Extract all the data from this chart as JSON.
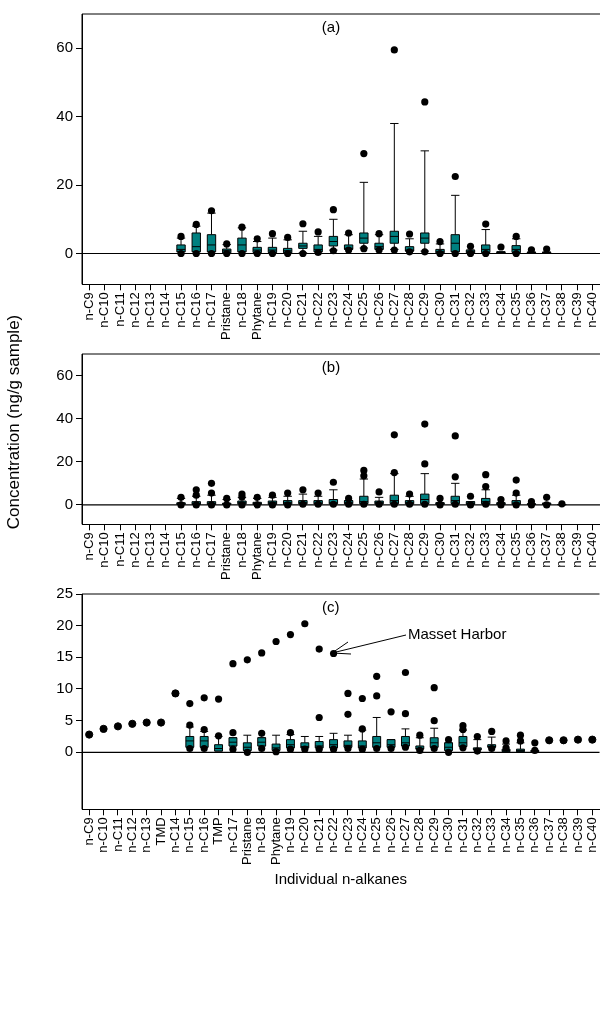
{
  "chart_data": [
    {
      "type": "box",
      "title": "(a)",
      "categories": [
        "n-C9",
        "n-C10",
        "n-C11",
        "n-C12",
        "n-C13",
        "n-C14",
        "n-C15",
        "n-C16",
        "n-C17",
        "Pristane",
        "n-C18",
        "Phytane",
        "n-C19",
        "n-C20",
        "n-C21",
        "n-C22",
        "n-C23",
        "n-C24",
        "n-C25",
        "n-C26",
        "n-C27",
        "n-C28",
        "n-C29",
        "n-C30",
        "n-C31",
        "n-C32",
        "n-C33",
        "n-C34",
        "n-C35",
        "n-C36",
        "n-C37",
        "n-C38",
        "n-C39",
        "n-C40"
      ],
      "series": [
        {
          "type": "box",
          "color": "#008080",
          "boxes": [
            null,
            null,
            null,
            null,
            null,
            null,
            {
              "low": 0.5,
              "q1": 0.5,
              "median": 1.2,
              "q3": 2.5,
              "high": 4.5,
              "outliers": [
                5,
                0
              ]
            },
            {
              "low": 0.5,
              "q1": 0.5,
              "median": 2,
              "q3": 6,
              "high": 8,
              "outliers": [
                8.5,
                0
              ]
            },
            {
              "low": 0.5,
              "q1": 0.5,
              "median": 2.5,
              "q3": 5.5,
              "high": 11.8,
              "outliers": [
                12.5,
                0
              ]
            },
            {
              "low": 0.2,
              "q1": 0.2,
              "median": 0.8,
              "q3": 1.3,
              "high": 2.6,
              "outliers": [
                2.8,
                0
              ]
            },
            {
              "low": 0.5,
              "q1": 0.5,
              "median": 2.5,
              "q3": 4.5,
              "high": 7.5,
              "outliers": [
                7.7,
                0
              ]
            },
            {
              "low": 0.3,
              "q1": 0.3,
              "median": 1,
              "q3": 1.8,
              "high": 3.5,
              "outliers": [
                4.3,
                0
              ]
            },
            {
              "low": 0.3,
              "q1": 0.3,
              "median": 1,
              "q3": 1.8,
              "high": 4.5,
              "outliers": [
                5.8,
                0
              ]
            },
            {
              "low": 0.2,
              "q1": 0.2,
              "median": 0.8,
              "q3": 1.5,
              "high": 4,
              "outliers": [
                4.7,
                0
              ]
            },
            {
              "low": 0.2,
              "q1": 1.5,
              "median": 2.2,
              "q3": 3,
              "high": 6.5,
              "outliers": [
                8.7,
                0
              ]
            },
            {
              "low": 0.5,
              "q1": 0.5,
              "median": 1.2,
              "q3": 2.5,
              "high": 5,
              "outliers": [
                6.3,
                0.3
              ]
            },
            {
              "low": 1,
              "q1": 2.2,
              "median": 3.5,
              "q3": 5,
              "high": 10,
              "outliers": [
                12.8,
                0.8
              ]
            },
            {
              "low": 1.2,
              "q1": 1.2,
              "median": 1.5,
              "q3": 2.5,
              "high": 5.5,
              "outliers": [
                6,
                1
              ]
            },
            {
              "low": 1.6,
              "q1": 3,
              "median": 4.5,
              "q3": 6,
              "high": 20.8,
              "outliers": [
                29.2,
                1.4
              ]
            },
            {
              "low": 1.2,
              "q1": 1.2,
              "median": 2,
              "q3": 3,
              "high": 5.5,
              "outliers": [
                5.8,
                1
              ]
            },
            {
              "low": 1.2,
              "q1": 3,
              "median": 5,
              "q3": 6.5,
              "high": 38,
              "outliers": [
                59.5,
                1
              ]
            },
            {
              "low": 0.7,
              "q1": 0.7,
              "median": 1,
              "q3": 2,
              "high": 4.3,
              "outliers": [
                5.7,
                0.5
              ]
            },
            {
              "low": 0.7,
              "q1": 3,
              "median": 4.5,
              "q3": 6,
              "high": 30,
              "outliers": [
                44.3,
                0.5
              ]
            },
            {
              "low": 0.2,
              "q1": 0.2,
              "median": 0.5,
              "q3": 1.2,
              "high": 2.8,
              "outliers": [
                3.5,
                0
              ]
            },
            {
              "low": 0.5,
              "q1": 0.5,
              "median": 3,
              "q3": 5.5,
              "high": 17,
              "outliers": [
                22.5,
                0
              ]
            },
            {
              "low": 0.2,
              "q1": 0.2,
              "median": 0.5,
              "q3": 1,
              "high": 1,
              "outliers": [
                2.1,
                0
              ]
            },
            {
              "low": 0.3,
              "q1": 0.3,
              "median": 1.2,
              "q3": 2.5,
              "high": 7,
              "outliers": [
                8.6,
                0
              ]
            },
            {
              "low": 0.2,
              "q1": 0.2,
              "median": 0.3,
              "q3": 0.5,
              "high": 0.5,
              "outliers": [
                1.9
              ]
            },
            {
              "low": 0.3,
              "q1": 0.3,
              "median": 1.2,
              "q3": 2.3,
              "high": 4.3,
              "outliers": [
                5,
                0
              ]
            },
            {
              "low": 0.2,
              "q1": 0.2,
              "median": 0.3,
              "q3": 0.4,
              "high": 0.4,
              "outliers": [
                1.1
              ]
            },
            {
              "low": 0.2,
              "q1": 0.2,
              "median": 0.3,
              "q3": 0.4,
              "high": 0.4,
              "outliers": [
                1.3
              ]
            },
            null,
            null,
            null
          ]
        }
      ],
      "ylim": [
        -9,
        70
      ],
      "yticks": [
        0,
        20,
        40,
        60
      ],
      "ref_lines": [
        {
          "axis": "y",
          "value": 0,
          "color": "#000000"
        }
      ],
      "grid": false,
      "legend": false
    },
    {
      "type": "box",
      "title": "(b)",
      "ylabel": "Concentration (ng/g sample)",
      "categories": [
        "n-C9",
        "n-C10",
        "n-C11",
        "n-C12",
        "n-C13",
        "n-C14",
        "n-C15",
        "n-C16",
        "n-C17",
        "Pristane",
        "n-C18",
        "Phytane",
        "n-C19",
        "n-C20",
        "n-C21",
        "n-C22",
        "n-C23",
        "n-C24",
        "n-C25",
        "n-C26",
        "n-C27",
        "n-C28",
        "n-C29",
        "n-C30",
        "n-C31",
        "n-C32",
        "n-C33",
        "n-C34",
        "n-C35",
        "n-C36",
        "n-C37",
        "n-C38",
        "n-C39",
        "n-C40"
      ],
      "series": [
        {
          "type": "box",
          "color": "#008080",
          "boxes": [
            null,
            null,
            null,
            null,
            null,
            null,
            {
              "low": 0.2,
              "q1": 0.2,
              "median": 0.5,
              "q3": 1,
              "high": 3,
              "outliers": [
                3.5,
                0
              ]
            },
            {
              "low": 0.2,
              "q1": 0.2,
              "median": 0.7,
              "q3": 1.5,
              "high": 4,
              "outliers": [
                7,
                4.5,
                0
              ]
            },
            {
              "low": 0.2,
              "q1": 0.2,
              "median": 0.7,
              "q3": 1.5,
              "high": 4.5,
              "outliers": [
                10,
                5.5,
                0
              ]
            },
            {
              "low": 0.2,
              "q1": 0.2,
              "median": 0.4,
              "q3": 0.8,
              "high": 2.5,
              "outliers": [
                3,
                0
              ]
            },
            {
              "low": 0.5,
              "q1": 0.5,
              "median": 1.2,
              "q3": 1.8,
              "high": 3.5,
              "outliers": [
                5,
                3.7,
                0
              ]
            },
            {
              "low": 0.2,
              "q1": 0.2,
              "median": 0.7,
              "q3": 1.2,
              "high": 3,
              "outliers": [
                3.5,
                0
              ]
            },
            {
              "low": 0.3,
              "q1": 0.3,
              "median": 1,
              "q3": 1.8,
              "high": 3.5,
              "outliers": [
                4.5,
                0
              ]
            },
            {
              "low": 0.3,
              "q1": 0.3,
              "median": 1,
              "q3": 2,
              "high": 4,
              "outliers": [
                5.5,
                0
              ]
            },
            {
              "low": 0.5,
              "q1": 0.5,
              "median": 1,
              "q3": 2,
              "high": 5,
              "outliers": [
                7,
                0.3
              ]
            },
            {
              "low": 0.5,
              "q1": 0.5,
              "median": 0.8,
              "q3": 2,
              "high": 4,
              "outliers": [
                5.5,
                0.3
              ]
            },
            {
              "low": 0.5,
              "q1": 0.5,
              "median": 1,
              "q3": 2.5,
              "high": 7,
              "outliers": [
                10.5,
                0.3
              ]
            },
            {
              "low": 0.5,
              "q1": 0.5,
              "median": 1,
              "q3": 2,
              "high": 2,
              "outliers": [
                3,
                0.3
              ]
            },
            {
              "low": 0.6,
              "q1": 0.6,
              "median": 1.5,
              "q3": 4,
              "high": 12,
              "outliers": [
                16,
                13.5,
                0.3
              ]
            },
            {
              "low": 0.5,
              "q1": 0.5,
              "median": 1,
              "q3": 1.8,
              "high": 3.5,
              "outliers": [
                6,
                0.3
              ]
            },
            {
              "low": 0.6,
              "q1": 0.6,
              "median": 2,
              "q3": 4.5,
              "high": 14.5,
              "outliers": [
                32.5,
                15,
                0.3
              ]
            },
            {
              "low": 0.5,
              "q1": 0.5,
              "median": 1,
              "q3": 2,
              "high": 4,
              "outliers": [
                5,
                0.3
              ]
            },
            {
              "low": 0.6,
              "q1": 0.6,
              "median": 2.5,
              "q3": 5,
              "high": 14.5,
              "outliers": [
                37.5,
                19,
                0.3
              ]
            },
            {
              "low": 0.2,
              "q1": 0.2,
              "median": 0.5,
              "q3": 1,
              "high": 1,
              "outliers": [
                3,
                0
              ]
            },
            {
              "low": 0.6,
              "q1": 0.6,
              "median": 2,
              "q3": 4,
              "high": 10,
              "outliers": [
                32,
                13,
                0.3
              ]
            },
            {
              "low": 0.3,
              "q1": 0.3,
              "median": 0.8,
              "q3": 1.5,
              "high": 1.5,
              "outliers": [
                4,
                0
              ]
            },
            {
              "low": 0.5,
              "q1": 0.5,
              "median": 1.5,
              "q3": 3,
              "high": 7,
              "outliers": [
                14,
                8.5,
                0.3
              ]
            },
            {
              "low": 0.2,
              "q1": 0.2,
              "median": 0.5,
              "q3": 1,
              "high": 1,
              "outliers": [
                2.5,
                0
              ]
            },
            {
              "low": 0.3,
              "q1": 0.3,
              "median": 0.8,
              "q3": 2,
              "high": 4.5,
              "outliers": [
                11.5,
                5.5,
                0
              ]
            },
            {
              "low": 0.2,
              "q1": 0.2,
              "median": 0.3,
              "q3": 0.5,
              "high": 0.5,
              "outliers": [
                1.5,
                0
              ]
            },
            {
              "low": 0.2,
              "q1": 0.2,
              "median": 0.4,
              "q3": 0.8,
              "high": 0.8,
              "outliers": [
                3.5,
                0
              ]
            },
            {
              "low": 0.1,
              "q1": 0.1,
              "median": 0.15,
              "q3": 0.2,
              "high": 0.2,
              "outliers": [
                0.5
              ]
            },
            null,
            null
          ]
        }
      ],
      "ylim": [
        -9,
        70
      ],
      "yticks": [
        0,
        20,
        40,
        60
      ],
      "ref_lines": [
        {
          "axis": "y",
          "value": 0,
          "color": "#000000"
        }
      ],
      "grid": false,
      "legend": false
    },
    {
      "type": "box",
      "title": "(c)",
      "xlabel": "Individual n-alkanes",
      "categories": [
        "n-C9",
        "n-C10",
        "n-C11",
        "n-C12",
        "n-C13",
        "TMD",
        "n-C14",
        "n-C15",
        "n-C16",
        "TMP",
        "n-C17",
        "Pristane",
        "n-C18",
        "Phytane",
        "n-C19",
        "n-C20",
        "n-C21",
        "n-C22",
        "n-C23",
        "n-C24",
        "n-C25",
        "n-C26",
        "n-C27",
        "n-C28",
        "n-C29",
        "n-C30",
        "n-C31",
        "n-C32",
        "n-C33",
        "n-C34",
        "n-C35",
        "n-C36",
        "n-C37",
        "n-C38",
        "n-C39",
        "n-C40"
      ],
      "series": [
        {
          "type": "box",
          "color": "#008080",
          "boxes": [
            null,
            null,
            null,
            null,
            null,
            null,
            null,
            {
              "low": 0.8,
              "q1": 0.8,
              "median": 1.8,
              "q3": 2.5,
              "high": 4,
              "outliers": [
                7.7,
                4.3,
                0.6
              ]
            },
            {
              "low": 0.8,
              "q1": 0.8,
              "median": 1.8,
              "q3": 2.5,
              "high": 3.3,
              "outliers": [
                8.6,
                3.6,
                0.6
              ]
            },
            {
              "low": 0.2,
              "q1": 0.2,
              "median": 0.6,
              "q3": 1.2,
              "high": 2.5,
              "outliers": [
                8.4,
                2.6
              ]
            },
            {
              "low": 1,
              "q1": 1,
              "median": 1.6,
              "q3": 2.3,
              "high": 2.3,
              "outliers": [
                14,
                3.1,
                0.5
              ]
            },
            {
              "low": 0.3,
              "q1": 0.3,
              "median": 0.8,
              "q3": 1.5,
              "high": 2.7,
              "outliers": [
                14.6,
                0
              ]
            },
            {
              "low": 1,
              "q1": 1,
              "median": 1.6,
              "q3": 2.3,
              "high": 2.3,
              "outliers": [
                15.7,
                3,
                0.6
              ]
            },
            {
              "low": 0.3,
              "q1": 0.3,
              "median": 0.7,
              "q3": 1.3,
              "high": 2.7,
              "outliers": [
                17.5,
                0.1
              ]
            },
            {
              "low": 0.7,
              "q1": 0.7,
              "median": 1.2,
              "q3": 2,
              "high": 2.8,
              "outliers": [
                18.6,
                3.1,
                0.5
              ]
            },
            {
              "low": 0.7,
              "q1": 0.7,
              "median": 0.9,
              "q3": 1.5,
              "high": 2.5,
              "outliers": [
                20.3,
                0.5
              ]
            },
            {
              "low": 0.7,
              "q1": 0.7,
              "median": 1,
              "q3": 1.7,
              "high": 2.5,
              "outliers": [
                16.3,
                5.5,
                0.5
              ]
            },
            {
              "low": 0.7,
              "q1": 0.7,
              "median": 1.2,
              "q3": 2,
              "high": 3,
              "outliers": [
                15.6,
                0.5
              ]
            },
            {
              "low": 0.8,
              "q1": 0.8,
              "median": 1.1,
              "q3": 1.8,
              "high": 2.7,
              "outliers": [
                9.3,
                6,
                0.6
              ]
            },
            {
              "low": 0.7,
              "q1": 0.7,
              "median": 1,
              "q3": 1.8,
              "high": 3.5,
              "outliers": [
                8.5,
                3.7,
                0.5
              ]
            },
            {
              "low": 0.8,
              "q1": 0.8,
              "median": 1.5,
              "q3": 2.5,
              "high": 5.5,
              "outliers": [
                12,
                8.9,
                0.6
              ]
            },
            {
              "low": 0.8,
              "q1": 0.8,
              "median": 1.2,
              "q3": 2,
              "high": 2,
              "outliers": [
                6.4,
                0.6
              ]
            },
            {
              "low": 1,
              "q1": 1,
              "median": 1.5,
              "q3": 2.5,
              "high": 3.7,
              "outliers": [
                12.6,
                6.1,
                0.8
              ]
            },
            {
              "low": 0.5,
              "q1": 0.5,
              "median": 0.6,
              "q3": 1,
              "high": 2.3,
              "outliers": [
                2.7,
                0.3
              ]
            },
            {
              "low": 0.8,
              "q1": 0.8,
              "median": 1.5,
              "q3": 2.3,
              "high": 3.8,
              "outliers": [
                10.2,
                5,
                0.6
              ]
            },
            {
              "low": 0.3,
              "q1": 0.3,
              "median": 0.8,
              "q3": 1.5,
              "high": 1.5,
              "outliers": [
                2,
                0
              ]
            },
            {
              "low": 0.9,
              "q1": 0.9,
              "median": 1.5,
              "q3": 2.5,
              "high": 3.5,
              "outliers": [
                4.2,
                3.6,
                0.7
              ]
            },
            {
              "low": 0.4,
              "q1": 0.4,
              "median": 0.5,
              "q3": 0.7,
              "high": 2,
              "outliers": [
                2.5,
                0.2
              ]
            },
            {
              "low": 0.8,
              "q1": 0.8,
              "median": 0.9,
              "q3": 1.2,
              "high": 2.4,
              "outliers": [
                3.3,
                0.6
              ]
            },
            {
              "low": 0.1,
              "q1": 0.1,
              "median": 0.3,
              "q3": 0.5,
              "high": 1.3,
              "outliers": [
                1.8,
                0.7
              ]
            },
            {
              "low": 0.1,
              "q1": 0.1,
              "median": 0.3,
              "q3": 0.5,
              "high": 1.5,
              "outliers": [
                2.7,
                1.8
              ]
            },
            {
              "low": 0.1,
              "q1": 0.1,
              "median": 0.2,
              "q3": 0.3,
              "high": 0.3,
              "outliers": [
                1.5,
                0.3
              ]
            },
            null,
            null,
            null,
            null
          ]
        },
        {
          "type": "scatter",
          "color": "#000000",
          "marker": "circle",
          "x": [
            "n-C9",
            "n-C10",
            "n-C11",
            "n-C12",
            "n-C13",
            "TMD",
            "n-C14",
            "n-C37",
            "n-C38",
            "n-C39",
            "n-C40"
          ],
          "values": [
            2.8,
            3.7,
            4.1,
            4.5,
            4.7,
            4.7,
            9.3,
            1.9,
            1.9,
            2.0,
            2.0
          ]
        }
      ],
      "annotations": [
        "Masset Harbor"
      ],
      "ylim": [
        -9,
        25
      ],
      "yticks": [
        0,
        5,
        10,
        15,
        20,
        25
      ],
      "ref_lines": [
        {
          "axis": "y",
          "value": 0,
          "color": "#000000"
        }
      ],
      "grid": false,
      "legend": false
    }
  ]
}
